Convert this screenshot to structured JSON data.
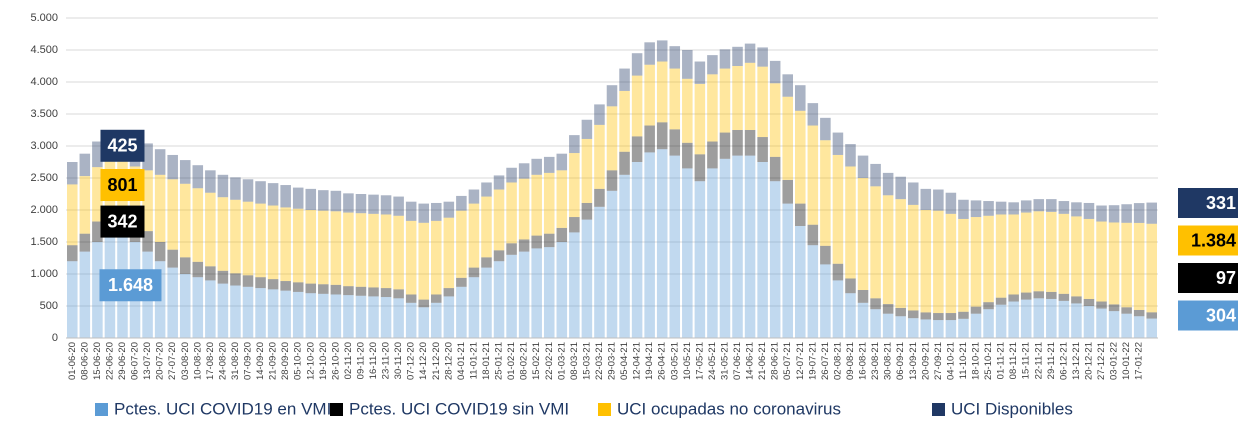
{
  "chart_data": {
    "type": "stacked_bar",
    "categories": [
      "01-06-20",
      "08-06-20",
      "15-06-20",
      "22-06-20",
      "29-06-20",
      "06-07-20",
      "13-07-20",
      "20-07-20",
      "27-07-20",
      "03-08-20",
      "10-08-20",
      "17-08-20",
      "24-08-20",
      "31-08-20",
      "07-09-20",
      "14-09-20",
      "21-09-20",
      "28-09-20",
      "05-10-20",
      "12-10-20",
      "19-10-20",
      "26-10-20",
      "02-11-20",
      "09-11-20",
      "16-11-20",
      "23-11-20",
      "30-11-20",
      "07-12-20",
      "14-12-20",
      "21-12-20",
      "28-12-20",
      "04-01-21",
      "11-01-21",
      "18-01-21",
      "25-01-21",
      "01-02-21",
      "08-02-21",
      "15-02-21",
      "22-02-21",
      "01-03-21",
      "08-03-21",
      "15-03-21",
      "22-03-21",
      "29-03-21",
      "05-04-21",
      "12-04-21",
      "19-04-21",
      "26-04-21",
      "03-05-21",
      "10-05-21",
      "17-05-21",
      "24-05-21",
      "31-05-21",
      "07-06-21",
      "14-06-21",
      "21-06-21",
      "28-06-21",
      "05-07-21",
      "12-07-21",
      "19-07-21",
      "26-07-21",
      "02-08-21",
      "09-08-21",
      "16-08-21",
      "23-08-21",
      "30-08-21",
      "06-09-21",
      "13-09-21",
      "20-09-21",
      "27-09-21",
      "04-10-21",
      "11-10-21",
      "18-10-21",
      "25-10-21",
      "01-11-21",
      "08-11-21",
      "15-11-21",
      "22-11-21",
      "29-11-21",
      "06-12-21",
      "13-12-21",
      "20-12-21",
      "27-12-21",
      "03-01-22",
      "10-01-22",
      "17-01-22",
      null
    ],
    "series": [
      {
        "name": "Pctes. UCI COVID19 en VMI",
        "color": "#5b9bd5",
        "values": [
          1200,
          1350,
          1500,
          1650,
          1648,
          1500,
          1350,
          1200,
          1100,
          1000,
          950,
          900,
          850,
          820,
          800,
          780,
          760,
          740,
          720,
          700,
          690,
          680,
          670,
          660,
          650,
          640,
          620,
          550,
          480,
          550,
          650,
          800,
          950,
          1100,
          1200,
          1300,
          1350,
          1400,
          1420,
          1500,
          1650,
          1850,
          2050,
          2300,
          2550,
          2750,
          2900,
          2950,
          2850,
          2650,
          2450,
          2650,
          2800,
          2850,
          2850,
          2750,
          2450,
          2100,
          1750,
          1450,
          1150,
          900,
          700,
          550,
          450,
          380,
          340,
          310,
          290,
          280,
          280,
          300,
          380,
          450,
          520,
          570,
          600,
          620,
          610,
          580,
          540,
          500,
          460,
          420,
          380,
          340,
          304
        ],
        "value_labels": [
          null,
          null,
          null,
          null,
          "1.648",
          null,
          null,
          null,
          null,
          null,
          null,
          null,
          null,
          null,
          null,
          null,
          null,
          null,
          null,
          null,
          null,
          null,
          null,
          null,
          null,
          null,
          null,
          null,
          null,
          null,
          null,
          null,
          null,
          null,
          null,
          null,
          null,
          null,
          null,
          null,
          null,
          null,
          null,
          null,
          null,
          null,
          null,
          null,
          null,
          null,
          null,
          null,
          null,
          null,
          null,
          null,
          null,
          null,
          null,
          null,
          null,
          null,
          null,
          null,
          null,
          null,
          null,
          null,
          null,
          null,
          null,
          null,
          null,
          null,
          null,
          null,
          null,
          null,
          null,
          null,
          null,
          null,
          null,
          null,
          null,
          null,
          "304"
        ]
      },
      {
        "name": "Pctes. UCI COVID19 sin VMI",
        "color": "#000000",
        "values": [
          250,
          280,
          320,
          340,
          342,
          330,
          320,
          300,
          280,
          260,
          240,
          220,
          200,
          190,
          180,
          170,
          160,
          150,
          150,
          150,
          150,
          150,
          140,
          140,
          140,
          140,
          140,
          130,
          120,
          130,
          130,
          140,
          150,
          160,
          170,
          180,
          190,
          200,
          210,
          220,
          240,
          260,
          280,
          320,
          360,
          400,
          420,
          420,
          410,
          400,
          420,
          420,
          410,
          400,
          400,
          390,
          380,
          370,
          350,
          320,
          290,
          260,
          230,
          200,
          170,
          150,
          130,
          120,
          110,
          110,
          110,
          110,
          110,
          110,
          110,
          110,
          110,
          110,
          110,
          110,
          110,
          110,
          110,
          105,
          100,
          98,
          97
        ],
        "value_labels": [
          null,
          null,
          null,
          null,
          "342",
          null,
          null,
          null,
          null,
          null,
          null,
          null,
          null,
          null,
          null,
          null,
          null,
          null,
          null,
          null,
          null,
          null,
          null,
          null,
          null,
          null,
          null,
          null,
          null,
          null,
          null,
          null,
          null,
          null,
          null,
          null,
          null,
          null,
          null,
          null,
          null,
          null,
          null,
          null,
          null,
          null,
          null,
          null,
          null,
          null,
          null,
          null,
          null,
          null,
          null,
          null,
          null,
          null,
          null,
          null,
          null,
          null,
          null,
          null,
          null,
          null,
          null,
          null,
          null,
          null,
          null,
          null,
          null,
          null,
          null,
          null,
          null,
          null,
          null,
          null,
          null,
          null,
          null,
          null,
          null,
          null,
          "97"
        ]
      },
      {
        "name": "UCI ocupadas no coronavirus",
        "color": "#ffc000",
        "values": [
          950,
          900,
          850,
          820,
          801,
          850,
          950,
          1050,
          1100,
          1150,
          1150,
          1150,
          1150,
          1150,
          1150,
          1150,
          1150,
          1150,
          1150,
          1150,
          1150,
          1150,
          1150,
          1150,
          1150,
          1150,
          1150,
          1150,
          1200,
          1150,
          1100,
          1050,
          1000,
          950,
          950,
          950,
          950,
          950,
          950,
          900,
          1000,
          1000,
          1000,
          1000,
          950,
          950,
          950,
          950,
          950,
          1000,
          1100,
          1050,
          1000,
          1000,
          1050,
          1100,
          1150,
          1300,
          1450,
          1550,
          1650,
          1700,
          1750,
          1750,
          1750,
          1700,
          1700,
          1650,
          1600,
          1600,
          1550,
          1450,
          1400,
          1350,
          1300,
          1250,
          1250,
          1250,
          1250,
          1250,
          1250,
          1250,
          1250,
          1280,
          1320,
          1360,
          1384
        ],
        "value_labels": [
          null,
          null,
          null,
          null,
          "801",
          null,
          null,
          null,
          null,
          null,
          null,
          null,
          null,
          null,
          null,
          null,
          null,
          null,
          null,
          null,
          null,
          null,
          null,
          null,
          null,
          null,
          null,
          null,
          null,
          null,
          null,
          null,
          null,
          null,
          null,
          null,
          null,
          null,
          null,
          null,
          null,
          null,
          null,
          null,
          null,
          null,
          null,
          null,
          null,
          null,
          null,
          null,
          null,
          null,
          null,
          null,
          null,
          null,
          null,
          null,
          null,
          null,
          null,
          null,
          null,
          null,
          null,
          null,
          null,
          null,
          null,
          null,
          null,
          null,
          null,
          null,
          null,
          null,
          null,
          null,
          null,
          null,
          null,
          null,
          null,
          null,
          "1.384"
        ]
      },
      {
        "name": "UCI Disponibles",
        "color": "#1f3864",
        "values": [
          350,
          350,
          400,
          420,
          425,
          450,
          420,
          400,
          380,
          370,
          360,
          350,
          350,
          350,
          350,
          350,
          350,
          350,
          330,
          330,
          320,
          320,
          300,
          300,
          300,
          300,
          300,
          300,
          300,
          280,
          250,
          230,
          220,
          220,
          220,
          230,
          240,
          250,
          250,
          260,
          280,
          300,
          320,
          330,
          350,
          350,
          350,
          330,
          350,
          450,
          350,
          300,
          300,
          300,
          300,
          300,
          350,
          350,
          400,
          350,
          350,
          350,
          350,
          350,
          350,
          350,
          350,
          350,
          330,
          330,
          330,
          300,
          260,
          230,
          200,
          190,
          190,
          190,
          200,
          200,
          220,
          250,
          250,
          270,
          290,
          310,
          331
        ],
        "value_labels": [
          null,
          null,
          null,
          null,
          "425",
          null,
          null,
          null,
          null,
          null,
          null,
          null,
          null,
          null,
          null,
          null,
          null,
          null,
          null,
          null,
          null,
          null,
          null,
          null,
          null,
          null,
          null,
          null,
          null,
          null,
          null,
          null,
          null,
          null,
          null,
          null,
          null,
          null,
          null,
          null,
          null,
          null,
          null,
          null,
          null,
          null,
          null,
          null,
          null,
          null,
          null,
          null,
          null,
          null,
          null,
          null,
          null,
          null,
          null,
          null,
          null,
          null,
          null,
          null,
          null,
          null,
          null,
          null,
          null,
          null,
          null,
          null,
          null,
          null,
          null,
          null,
          null,
          null,
          null,
          null,
          null,
          null,
          null,
          null,
          null,
          null,
          "331"
        ]
      }
    ],
    "ylim": [
      0,
      5000
    ],
    "yticks": [
      0,
      500,
      {
        "value": 1000,
        "label": "1.000"
      },
      {
        "value": 1500,
        "label": "1.500"
      },
      {
        "value": 2000,
        "label": "2.000"
      },
      {
        "value": 2500,
        "label": "2.500"
      },
      {
        "value": 3000,
        "label": "3.000"
      },
      {
        "value": 3500,
        "label": "3.500"
      },
      {
        "value": 4000,
        "label": "4.000"
      },
      {
        "value": 4500,
        "label": "4.500"
      },
      {
        "value": 5000,
        "label": "5.000"
      }
    ],
    "grid": true,
    "legend": "bottom"
  }
}
